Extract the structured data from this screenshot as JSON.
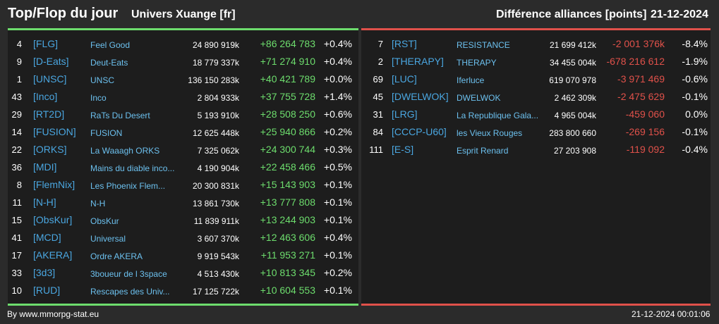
{
  "header": {
    "title": "Top/Flop du jour",
    "subtitle": "Univers Xuange [fr]",
    "metric": "Différence alliances [points]",
    "date": "21-12-2024"
  },
  "colors": {
    "positive": "#6ddd6d",
    "negative": "#e0514a",
    "tag": "#4aa6e0",
    "name": "#6cc0ee"
  },
  "top": [
    {
      "rank": "4",
      "tag": "[FLG]",
      "name": "Feel Good",
      "points": "24 890 919k",
      "diff": "+86 264 783",
      "pct": "+0.4%"
    },
    {
      "rank": "9",
      "tag": "[D-Eats]",
      "name": "Deut-Eats",
      "points": "18 779 337k",
      "diff": "+71 274 910",
      "pct": "+0.4%"
    },
    {
      "rank": "1",
      "tag": "[UNSC]",
      "name": "UNSC",
      "points": "136 150 283k",
      "diff": "+40 421 789",
      "pct": "+0.0%"
    },
    {
      "rank": "43",
      "tag": "[Inco]",
      "name": "Inco",
      "points": "2 804 933k",
      "diff": "+37 755 728",
      "pct": "+1.4%"
    },
    {
      "rank": "29",
      "tag": "[RT2D]",
      "name": "RaTs Du Desert",
      "points": "5 193 910k",
      "diff": "+28 508 250",
      "pct": "+0.6%"
    },
    {
      "rank": "14",
      "tag": "[FUSION]",
      "name": "FUSION",
      "points": "12 625 448k",
      "diff": "+25 940 866",
      "pct": "+0.2%"
    },
    {
      "rank": "22",
      "tag": "[ORKS]",
      "name": "La Waaagh ORKS",
      "points": "7 325 062k",
      "diff": "+24 300 744",
      "pct": "+0.3%"
    },
    {
      "rank": "36",
      "tag": "[MDI]",
      "name": "Mains du diable inco...",
      "points": "4 190 904k",
      "diff": "+22 458 466",
      "pct": "+0.5%"
    },
    {
      "rank": "8",
      "tag": "[FlemNix]",
      "name": "Les Phoenix Flem...",
      "points": "20 300 831k",
      "diff": "+15 143 903",
      "pct": "+0.1%"
    },
    {
      "rank": "11",
      "tag": "[N-H]",
      "name": "N-H",
      "points": "13 861 730k",
      "diff": "+13 777 808",
      "pct": "+0.1%"
    },
    {
      "rank": "15",
      "tag": "[ObsKur]",
      "name": "ObsKur",
      "points": "11 839 911k",
      "diff": "+13 244 903",
      "pct": "+0.1%"
    },
    {
      "rank": "41",
      "tag": "[MCD]",
      "name": "Universal",
      "points": "3 607 370k",
      "diff": "+12 463 606",
      "pct": "+0.4%"
    },
    {
      "rank": "17",
      "tag": "[AKERA]",
      "name": "Ordre AKERA",
      "points": "9 919 543k",
      "diff": "+11 953 271",
      "pct": "+0.1%"
    },
    {
      "rank": "33",
      "tag": "[3d3]",
      "name": "3boueur de l 3space",
      "points": "4 513 430k",
      "diff": "+10 813 345",
      "pct": "+0.2%"
    },
    {
      "rank": "10",
      "tag": "[RUD]",
      "name": "Rescapes des Univ...",
      "points": "17 125 722k",
      "diff": "+10 604 553",
      "pct": "+0.1%"
    }
  ],
  "flop": [
    {
      "rank": "7",
      "tag": "[RST]",
      "name": "RESISTANCE",
      "points": "21 699 412k",
      "diff": "-2 001 376k",
      "pct": "-8.4%"
    },
    {
      "rank": "2",
      "tag": "[THERAPY]",
      "name": "THERAPY",
      "points": "34 455 004k",
      "diff": "-678 216 612",
      "pct": "-1.9%"
    },
    {
      "rank": "69",
      "tag": "[LUC]",
      "name": "Iferluce",
      "points": "619 070 978",
      "diff": "-3 971 469",
      "pct": "-0.6%"
    },
    {
      "rank": "45",
      "tag": "[DWELWOK]",
      "name": "DWELWOK",
      "points": "2 462 309k",
      "diff": "-2 475 629",
      "pct": "-0.1%"
    },
    {
      "rank": "31",
      "tag": "[LRG]",
      "name": "La Republique Gala...",
      "points": "4 965 004k",
      "diff": "-459 060",
      "pct": "0.0%"
    },
    {
      "rank": "84",
      "tag": "[CCCP-U60]",
      "name": "les Vieux Rouges",
      "points": "283 800 660",
      "diff": "-269 156",
      "pct": "-0.1%"
    },
    {
      "rank": "111",
      "tag": "[E-S]",
      "name": "Esprit Renard",
      "points": "27 203 908",
      "diff": "-119 092",
      "pct": "-0.4%"
    }
  ],
  "footer": {
    "source": "By www.mmorpg-stat.eu",
    "timestamp": "21-12-2024 00:01:06"
  }
}
